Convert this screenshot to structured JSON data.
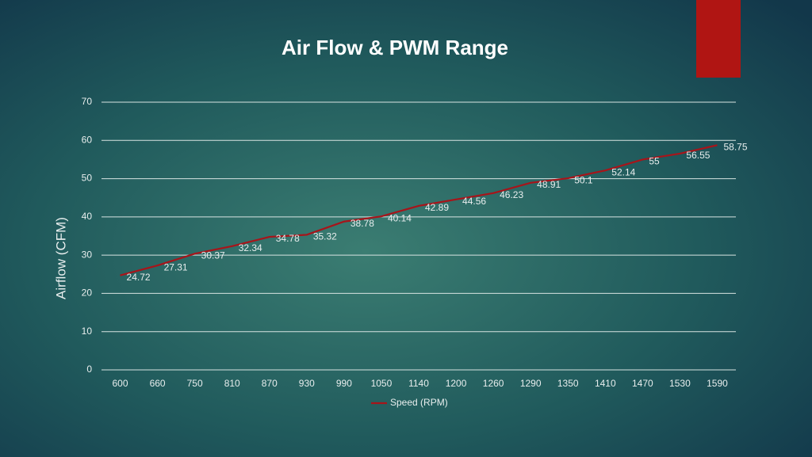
{
  "chart_data": {
    "type": "line",
    "title": "Air Flow & PWM Range",
    "y_label": "Airflow (CFM)",
    "categories": [
      "600",
      "660",
      "750",
      "810",
      "870",
      "930",
      "990",
      "1050",
      "1140",
      "1200",
      "1260",
      "1290",
      "1350",
      "1410",
      "1470",
      "1530",
      "1590"
    ],
    "series": [
      {
        "name": "Speed (RPM)",
        "color": "#a8141a",
        "values": [
          24.72,
          27.31,
          30.37,
          32.34,
          34.78,
          35.32,
          38.78,
          40.14,
          42.89,
          44.56,
          46.23,
          48.91,
          50.1,
          52.14,
          55,
          56.55,
          58.75
        ]
      }
    ],
    "ylim": [
      0,
      70
    ],
    "yticks": [
      0,
      10,
      20,
      30,
      40,
      50,
      60,
      70
    ],
    "grid": true,
    "legend": "bottom"
  }
}
